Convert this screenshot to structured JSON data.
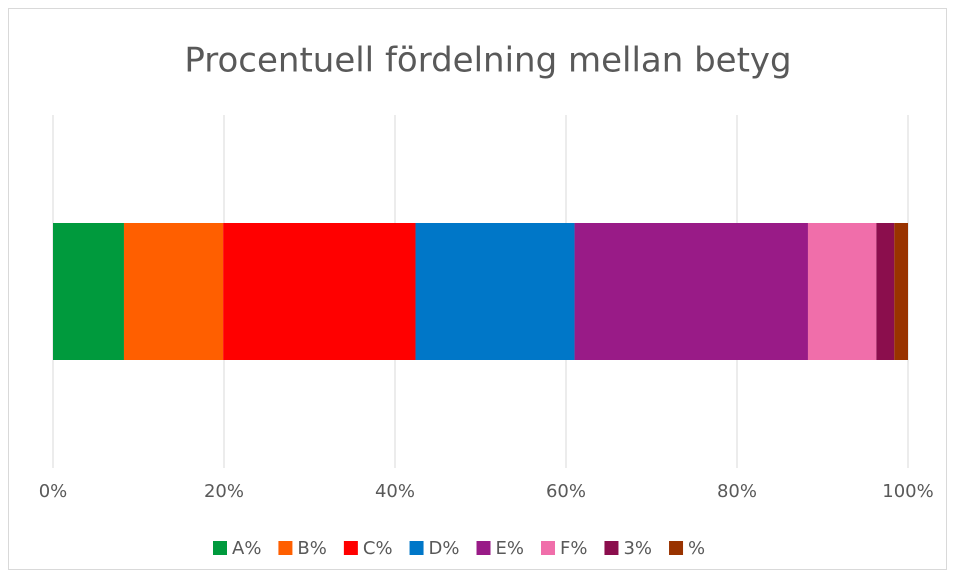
{
  "chart_data": {
    "type": "bar",
    "orientation": "horizontal",
    "stacked": true,
    "title": "Procentuell fördelning mellan betyg",
    "categories": [
      null
    ],
    "series": [
      {
        "name": "A%",
        "color": "#009a3d",
        "values": [
          8.3
        ]
      },
      {
        "name": "B%",
        "color": "#ff5f00",
        "values": [
          11.6
        ]
      },
      {
        "name": "C%",
        "color": "#ff0000",
        "values": [
          22.5
        ]
      },
      {
        "name": "D%",
        "color": "#0077c8",
        "values": [
          18.6
        ]
      },
      {
        "name": "E%",
        "color": "#991b87",
        "values": [
          27.3
        ]
      },
      {
        "name": "F%",
        "color": "#f06eaa",
        "values": [
          8.0
        ]
      },
      {
        "name": "3%",
        "color": "#8b0e4d",
        "values": [
          2.1
        ]
      },
      {
        "name": "%",
        "color": "#993300",
        "values": [
          1.6
        ]
      }
    ],
    "xlim": [
      0,
      100
    ],
    "xticks": [
      {
        "value": 0,
        "label": "0%"
      },
      {
        "value": 20,
        "label": "20%"
      },
      {
        "value": 40,
        "label": "40%"
      },
      {
        "value": 60,
        "label": "60%"
      },
      {
        "value": 80,
        "label": "80%"
      },
      {
        "value": 100,
        "label": "100%"
      }
    ],
    "grid": true,
    "legend": "bottom"
  }
}
